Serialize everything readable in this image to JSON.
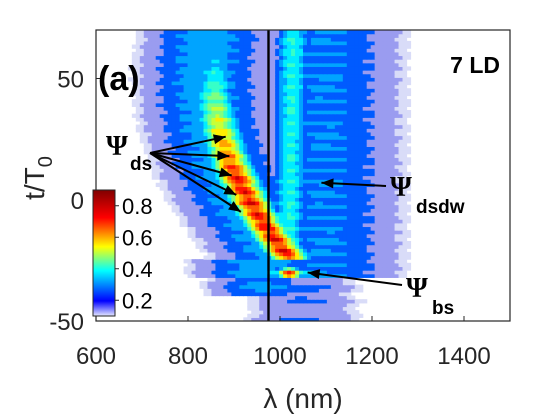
{
  "chart_data": {
    "type": "heatmap",
    "subtype": "filled-contour",
    "panel_label": "(a)",
    "corner_label": "7 LD",
    "xlabel": "λ (nm)",
    "ylabel": {
      "main": "t/T",
      "sub": "0"
    },
    "xlim": [
      600,
      1500
    ],
    "ylim": [
      -50,
      70
    ],
    "xticks": [
      "600",
      "800",
      "1000",
      "1200",
      "1400"
    ],
    "xtick_values": [
      600,
      800,
      1000,
      1200,
      1400
    ],
    "yticks": [
      "-50",
      "0",
      "50"
    ],
    "ytick_values": [
      -50,
      0,
      50
    ],
    "colormap": "jet",
    "vertical_line_x": 975,
    "colorbar": {
      "ticks": [
        "0.2",
        "0.4",
        "0.6",
        "0.8"
      ],
      "tick_values": [
        0.2,
        0.4,
        0.6,
        0.8
      ],
      "range": [
        0.1,
        0.9
      ],
      "placement": "inside-left"
    },
    "features": [
      {
        "name": "dispersive soliton trajectory",
        "path_points": [
          [
            890,
            70
          ],
          [
            880,
            50
          ],
          [
            880,
            30
          ],
          [
            905,
            10
          ],
          [
            935,
            -10
          ],
          [
            960,
            -22
          ],
          [
            975,
            -25
          ]
        ],
        "peak_value": 0.9
      },
      {
        "name": "secondary branch",
        "path_points": [
          [
            1020,
            70
          ],
          [
            1025,
            40
          ],
          [
            1020,
            15
          ],
          [
            1015,
            -10
          ]
        ],
        "peak_value": 0.4
      },
      {
        "name": "bound-state collision",
        "center": [
          1020,
          -30
        ],
        "peak_value": 0.9
      }
    ],
    "annotations": [
      {
        "psi": "Ψ",
        "sub": "ds",
        "targets": [
          [
            882,
            26
          ],
          [
            890,
            18
          ],
          [
            895,
            10
          ],
          [
            905,
            2
          ],
          [
            915,
            -5
          ]
        ]
      },
      {
        "psi": "Ψ",
        "sub": "dsdw",
        "targets": [
          [
            1090,
            7
          ]
        ]
      },
      {
        "psi": "Ψ",
        "sub": "bs",
        "targets": [
          [
            1060,
            -30
          ]
        ]
      }
    ]
  },
  "colors": {
    "background": "#ffffff",
    "axis": "#262626",
    "line": "#000000"
  }
}
